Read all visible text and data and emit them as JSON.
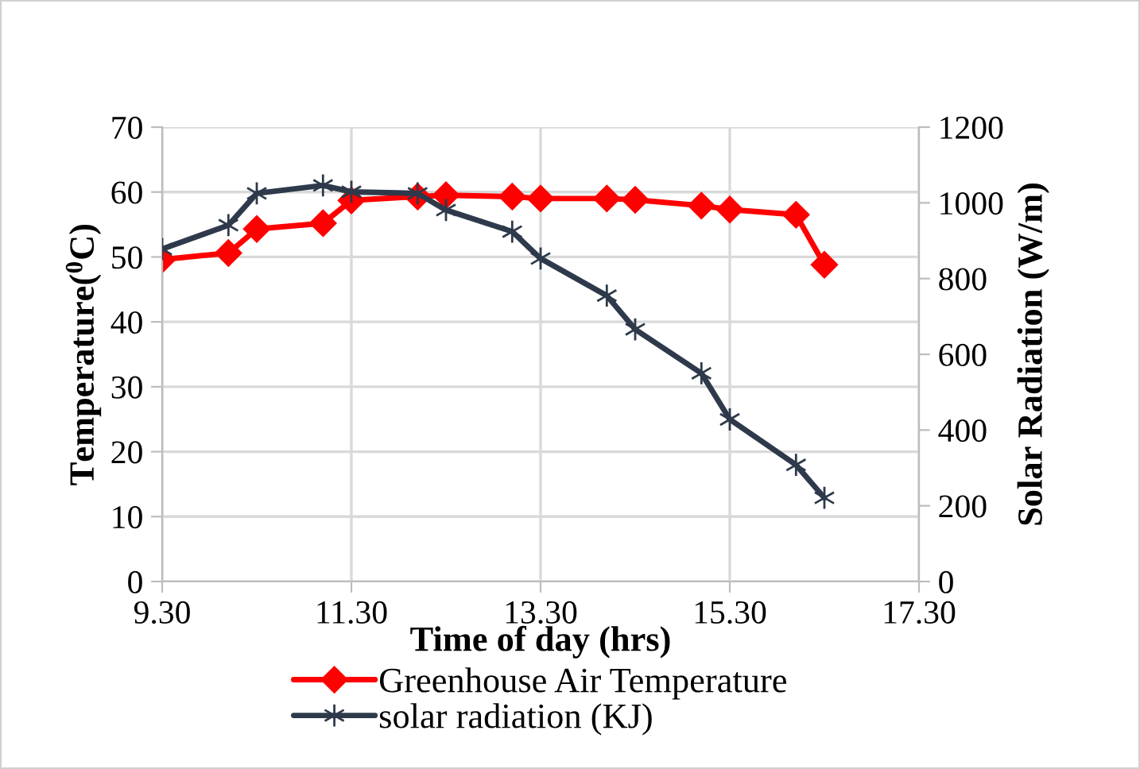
{
  "chart_data": {
    "type": "line",
    "xlabel": "Time of day (hrs)",
    "ylabel": "Temperature($^{0}$C)",
    "y2label": "Solar Radiation (W/m)",
    "xlim": [
      9.3,
      17.3
    ],
    "xticks": [
      {
        "value": 9.3,
        "label": "9.30"
      },
      {
        "value": 11.3,
        "label": "11.30"
      },
      {
        "value": 13.3,
        "label": "13.30"
      },
      {
        "value": 15.3,
        "label": "15.30"
      },
      {
        "value": 17.3,
        "label": "17.30"
      }
    ],
    "ylim": [
      0,
      70
    ],
    "yticks": [
      0,
      10,
      20,
      30,
      40,
      50,
      60,
      70
    ],
    "y2lim": [
      0,
      1200
    ],
    "y2ticks": [
      0,
      200,
      400,
      600,
      800,
      1000,
      1200
    ],
    "grid": true,
    "legend": "bottom",
    "line_style": "solid",
    "series": [
      {
        "name": "Greenhouse Air Temperature",
        "color": "#ff0000",
        "marker": "diamond",
        "x": [
          9.3,
          10.0,
          10.3,
          11.0,
          11.3,
          12.0,
          12.3,
          13.0,
          13.3,
          14.0,
          14.3,
          15.0,
          15.3,
          16.0,
          16.3
        ],
        "values": [
          49.6,
          50.6,
          54.3,
          55.2,
          58.7,
          59.3,
          59.5,
          59.3,
          59.0,
          59.0,
          58.8,
          57.9,
          57.3,
          56.5,
          48.8
        ]
      },
      {
        "name": "solar radiation (KJ)",
        "color": "#2e3a4b",
        "marker": "cross",
        "axis": "y2",
        "x": [
          9.3,
          10.0,
          10.3,
          11.0,
          11.3,
          12.0,
          12.3,
          13.0,
          13.3,
          14.0,
          14.3,
          15.0,
          15.3,
          16.0,
          16.3
        ],
        "values": [
          878,
          941,
          1025,
          1046,
          1029,
          1025,
          981,
          924,
          853,
          755,
          666,
          550,
          428,
          308,
          221
        ]
      }
    ]
  }
}
